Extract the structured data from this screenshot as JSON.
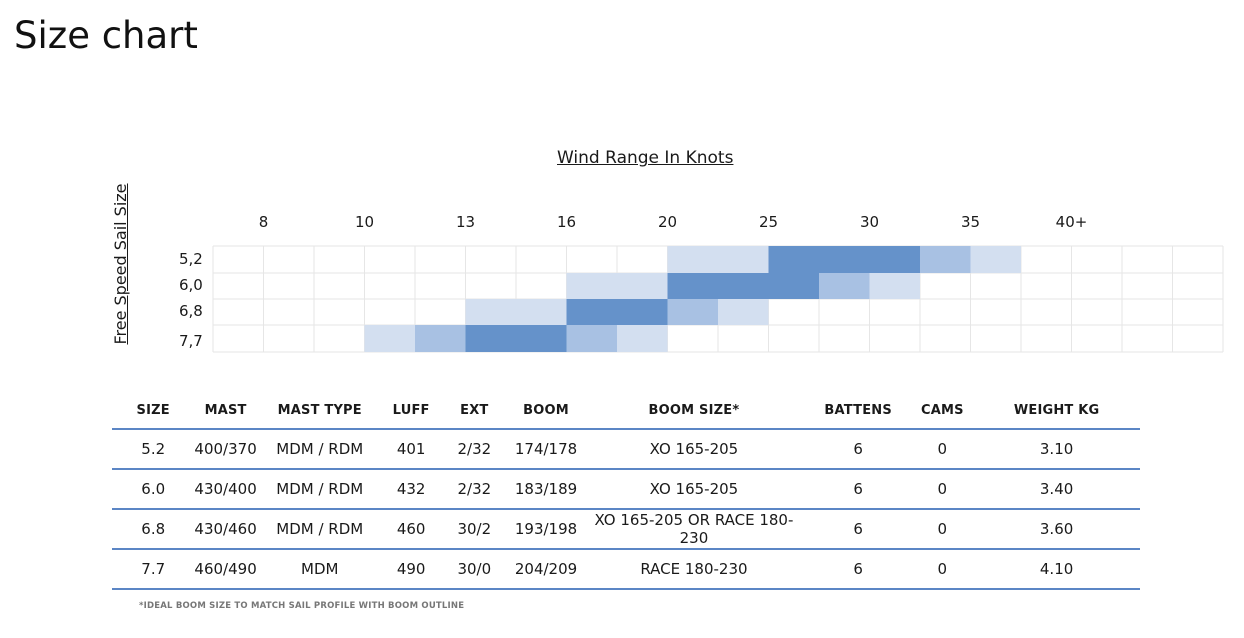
{
  "page": {
    "title": "Size chart"
  },
  "chart_data": {
    "type": "heatmap",
    "title": "Wind Range In Knots",
    "ylabel": "Free Speed Sail Size",
    "x_ticks": [
      "8",
      "10",
      "13",
      "16",
      "20",
      "25",
      "30",
      "35",
      "40+"
    ],
    "rows": [
      "5,2",
      "6,0",
      "6,8",
      "7,7"
    ],
    "legend": [],
    "colors": {
      "light": "#d3dff0",
      "medium": "#a8c1e3",
      "strong": "#6592ca",
      "grid": "#e6e6e6"
    },
    "levels_comment_free": true,
    "cells": [
      [
        0,
        0,
        0,
        0,
        0,
        0,
        0,
        0,
        0,
        1,
        1,
        2,
        2,
        2,
        2,
        1,
        1,
        0,
        0
      ],
      [
        0,
        0,
        0,
        0,
        0,
        0,
        0,
        1,
        1,
        2,
        2,
        2,
        1,
        1,
        0,
        0,
        0,
        0,
        0
      ],
      [
        0,
        0,
        0,
        0,
        0,
        1,
        1,
        2,
        2,
        1,
        1,
        0,
        0,
        0,
        0,
        0,
        0,
        0,
        0
      ],
      [
        0,
        0,
        0,
        1,
        1,
        2,
        2,
        1,
        1,
        0,
        0,
        0,
        0,
        0,
        0,
        0,
        0,
        0,
        0
      ]
    ],
    "cell_levels": [
      [
        0,
        0,
        0,
        0,
        0,
        0,
        0,
        0,
        0,
        1,
        1,
        3,
        3,
        3,
        2,
        1,
        0,
        0,
        0
      ],
      [
        0,
        0,
        0,
        0,
        0,
        0,
        0,
        1,
        1,
        3,
        3,
        3,
        2,
        1,
        0,
        0,
        0,
        0,
        0
      ],
      [
        0,
        0,
        0,
        0,
        0,
        1,
        1,
        3,
        3,
        2,
        1,
        0,
        0,
        0,
        0,
        0,
        0,
        0,
        0
      ],
      [
        0,
        0,
        0,
        1,
        2,
        3,
        3,
        2,
        1,
        0,
        0,
        0,
        0,
        0,
        0,
        0,
        0,
        0,
        0
      ]
    ]
  },
  "table": {
    "headers": [
      "SIZE",
      "MAST",
      "MAST TYPE",
      "LUFF",
      "EXT",
      "BOOM",
      "BOOM SIZE*",
      "BATTENS",
      "CAMS",
      "WEIGHT KG"
    ],
    "rows": [
      [
        "5.2",
        "400/370",
        "MDM / RDM",
        "401",
        "2/32",
        "174/178",
        "XO 165-205",
        "6",
        "0",
        "3.10"
      ],
      [
        "6.0",
        "430/400",
        "MDM / RDM",
        "432",
        "2/32",
        "183/189",
        "XO 165-205",
        "6",
        "0",
        "3.40"
      ],
      [
        "6.8",
        "430/460",
        "MDM / RDM",
        "460",
        "30/2",
        "193/198",
        "XO 165-205 OR RACE 180-230",
        "6",
        "0",
        "3.60"
      ],
      [
        "7.7",
        "460/490",
        "MDM",
        "490",
        "30/0",
        "204/209",
        "RACE 180-230",
        "6",
        "0",
        "4.10"
      ]
    ]
  },
  "footnote": "*IDEAL BOOM SIZE TO MATCH SAIL PROFILE WITH BOOM OUTLINE"
}
